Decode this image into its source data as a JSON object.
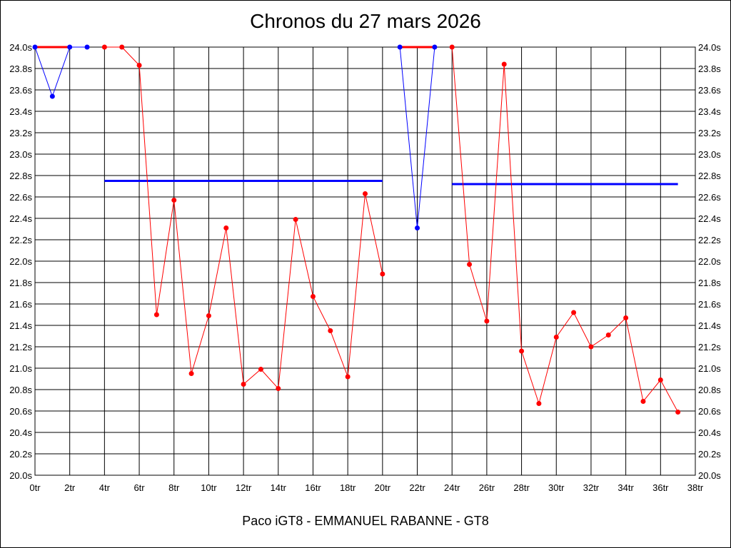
{
  "chart_data": {
    "type": "line",
    "title": "Chronos du 27 mars 2026",
    "subtitle": "Paco iGT8 - EMMANUEL RABANNE - GT8",
    "xlim": [
      0,
      38
    ],
    "ylim": [
      20.0,
      24.0
    ],
    "x_tick_step": 2,
    "x_tick_suffix": "tr",
    "y_tick_step": 0.2,
    "y_tick_suffix": "s",
    "y_ticks_both_sides": true,
    "grid": true,
    "colors": {
      "red": "#ff0000",
      "blue": "#0000ff",
      "grid": "#000000"
    },
    "series": [
      {
        "color": "#0000ff",
        "points": [
          [
            0,
            24.0
          ],
          [
            1,
            23.54
          ],
          [
            2,
            24.0
          ],
          [
            3,
            24.0
          ]
        ]
      },
      {
        "color": "#ff0000",
        "points": [
          [
            4,
            24.0
          ],
          [
            5,
            24.0
          ],
          [
            6,
            23.83
          ],
          [
            7,
            21.5
          ],
          [
            8,
            22.57
          ],
          [
            9,
            20.95
          ],
          [
            10,
            21.49
          ],
          [
            11,
            22.31
          ],
          [
            12,
            20.85
          ],
          [
            13,
            20.99
          ],
          [
            14,
            20.81
          ],
          [
            15,
            22.39
          ],
          [
            16,
            21.67
          ],
          [
            17,
            21.35
          ],
          [
            18,
            20.92
          ],
          [
            19,
            22.63
          ],
          [
            20,
            21.88
          ]
        ]
      },
      {
        "color": "#0000ff",
        "points": [
          [
            21,
            24.0
          ],
          [
            22,
            22.31
          ],
          [
            23,
            24.0
          ]
        ]
      },
      {
        "color": "#ff0000",
        "points": [
          [
            24,
            24.0
          ],
          [
            25,
            21.97
          ],
          [
            26,
            21.44
          ],
          [
            27,
            23.84
          ],
          [
            28,
            21.16
          ],
          [
            29,
            20.67
          ],
          [
            30,
            21.29
          ],
          [
            31,
            21.52
          ],
          [
            32,
            21.2
          ],
          [
            33,
            21.31
          ],
          [
            34,
            21.47
          ],
          [
            35,
            20.69
          ],
          [
            36,
            20.89
          ],
          [
            37,
            20.59
          ]
        ]
      }
    ],
    "flat_segments": [
      {
        "color": "#ff0000",
        "x": [
          0,
          2
        ],
        "y": 24.0
      },
      {
        "color": "#ff0000",
        "x": [
          21,
          23
        ],
        "y": 24.0
      }
    ],
    "average_lines": [
      {
        "color": "#0000ff",
        "x": [
          4,
          20
        ],
        "y": 22.75
      },
      {
        "color": "#0000ff",
        "x": [
          24,
          37
        ],
        "y": 22.72
      }
    ]
  }
}
